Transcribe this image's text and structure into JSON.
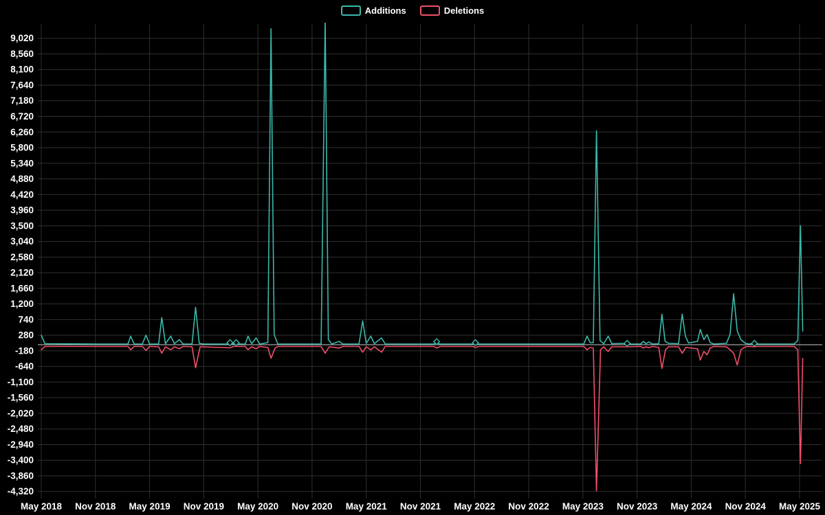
{
  "colors": {
    "background": "#000000",
    "grid": "#303030",
    "zero_line": "#cccccc",
    "text": "#ffffff"
  },
  "legend": {
    "items": [
      {
        "label": "Additions",
        "color": "#3cb8ab"
      },
      {
        "label": "Deletions",
        "color": "#f0506a"
      }
    ]
  },
  "chart_data": {
    "type": "line",
    "title": "",
    "legend_position": "top-center",
    "grid": true,
    "x_axis": {
      "labels": [
        "May 2018",
        "Nov 2018",
        "May 2019",
        "Nov 2019",
        "May 2020",
        "Nov 2020",
        "May 2021",
        "Nov 2021",
        "May 2022",
        "Nov 2022",
        "May 2023",
        "Nov 2023",
        "May 2024",
        "Nov 2024",
        "May 2025"
      ],
      "months_per_label": 6
    },
    "y_axis": {
      "min": -4320,
      "max": 9020,
      "tick_step": 460,
      "tick_values": [
        9020,
        8560,
        8100,
        7640,
        7180,
        6720,
        6260,
        5800,
        5340,
        4880,
        4420,
        3960,
        3500,
        3040,
        2580,
        2120,
        1660,
        1200,
        740,
        280,
        -180,
        -640,
        -1100,
        -1560,
        -2020,
        -2480,
        -2940,
        -3400,
        -3860,
        -4320
      ],
      "tick_labels": [
        "9,020",
        "8,560",
        "8,100",
        "7,640",
        "7,180",
        "6,720",
        "6,260",
        "5,800",
        "5,340",
        "4,880",
        "4,420",
        "3,960",
        "3,500",
        "3,040",
        "2,580",
        "2,120",
        "1,660",
        "1,200",
        "740",
        "280",
        "-180",
        "-640",
        "-1,100",
        "-1,560",
        "-2,020",
        "-2,480",
        "-2,940",
        "-3,400",
        "-3,860",
        "-4,320"
      ]
    },
    "series": [
      {
        "name": "Additions",
        "color": "#3cb8ab",
        "points": [
          [
            0,
            280
          ],
          [
            0.4,
            30
          ],
          [
            6,
            20
          ],
          [
            9.6,
            20
          ],
          [
            9.9,
            250
          ],
          [
            10.3,
            20
          ],
          [
            11.2,
            20
          ],
          [
            11.6,
            280
          ],
          [
            12.0,
            20
          ],
          [
            13.0,
            20
          ],
          [
            13.35,
            800
          ],
          [
            13.75,
            30
          ],
          [
            14.35,
            250
          ],
          [
            14.75,
            30
          ],
          [
            15.3,
            150
          ],
          [
            15.7,
            20
          ],
          [
            16.7,
            20
          ],
          [
            17.1,
            1100
          ],
          [
            17.5,
            40
          ],
          [
            18,
            20
          ],
          [
            20.6,
            20
          ],
          [
            20.9,
            60
          ],
          [
            21.3,
            20
          ],
          [
            21.6,
            60
          ],
          [
            21.9,
            20
          ],
          [
            22.6,
            20
          ],
          [
            22.9,
            250
          ],
          [
            23.3,
            30
          ],
          [
            23.8,
            200
          ],
          [
            24.2,
            20
          ],
          [
            25.1,
            60
          ],
          [
            25.45,
            9300
          ],
          [
            25.8,
            300
          ],
          [
            26.2,
            20
          ],
          [
            31.0,
            20
          ],
          [
            31.45,
            9600
          ],
          [
            31.8,
            150
          ],
          [
            32.2,
            20
          ],
          [
            33.0,
            100
          ],
          [
            33.4,
            20
          ],
          [
            35.2,
            20
          ],
          [
            35.6,
            700
          ],
          [
            36.0,
            40
          ],
          [
            36.5,
            250
          ],
          [
            36.9,
            30
          ],
          [
            37.7,
            200
          ],
          [
            38.1,
            20
          ],
          [
            43.5,
            20
          ],
          [
            43.8,
            90
          ],
          [
            44.1,
            20
          ],
          [
            47.8,
            20
          ],
          [
            48.1,
            60
          ],
          [
            48.4,
            20
          ],
          [
            60.1,
            20
          ],
          [
            60.45,
            250
          ],
          [
            60.8,
            60
          ],
          [
            61.15,
            60
          ],
          [
            61.5,
            6300
          ],
          [
            61.9,
            120
          ],
          [
            62.3,
            30
          ],
          [
            62.8,
            250
          ],
          [
            63.2,
            30
          ],
          [
            64.9,
            40
          ],
          [
            65.3,
            20
          ],
          [
            66.4,
            20
          ],
          [
            66.7,
            100
          ],
          [
            67.0,
            30
          ],
          [
            67.3,
            80
          ],
          [
            67.7,
            20
          ],
          [
            68.4,
            30
          ],
          [
            68.75,
            900
          ],
          [
            69.1,
            100
          ],
          [
            69.5,
            40
          ],
          [
            70.6,
            30
          ],
          [
            71.0,
            900
          ],
          [
            71.35,
            250
          ],
          [
            71.7,
            50
          ],
          [
            72.7,
            100
          ],
          [
            73.0,
            450
          ],
          [
            73.4,
            150
          ],
          [
            73.75,
            300
          ],
          [
            74.1,
            60
          ],
          [
            74.5,
            20
          ],
          [
            75.9,
            40
          ],
          [
            76.3,
            300
          ],
          [
            76.7,
            1500
          ],
          [
            77.1,
            400
          ],
          [
            77.5,
            150
          ],
          [
            78.0,
            40
          ],
          [
            78.4,
            20
          ],
          [
            79.0,
            40
          ],
          [
            79.4,
            20
          ],
          [
            83.4,
            20
          ],
          [
            83.8,
            120
          ],
          [
            84.1,
            3500
          ],
          [
            84.35,
            400
          ]
        ],
        "markers": [
          [
            20.9,
            60
          ],
          [
            21.6,
            60
          ],
          [
            43.8,
            90
          ],
          [
            48.1,
            60
          ],
          [
            64.9,
            40
          ],
          [
            79.0,
            40
          ]
        ]
      },
      {
        "name": "Deletions",
        "color": "#f0506a",
        "points": [
          [
            0,
            -150
          ],
          [
            0.4,
            -50
          ],
          [
            6,
            -50
          ],
          [
            9.6,
            -50
          ],
          [
            9.9,
            -150
          ],
          [
            10.3,
            -50
          ],
          [
            11.2,
            -50
          ],
          [
            11.6,
            -170
          ],
          [
            12.0,
            -50
          ],
          [
            13.0,
            -60
          ],
          [
            13.35,
            -250
          ],
          [
            13.75,
            -60
          ],
          [
            14.35,
            -150
          ],
          [
            14.75,
            -60
          ],
          [
            15.3,
            -120
          ],
          [
            15.7,
            -50
          ],
          [
            16.7,
            -60
          ],
          [
            17.1,
            -680
          ],
          [
            17.6,
            -60
          ],
          [
            20.9,
            -90
          ],
          [
            21.3,
            -50
          ],
          [
            22.6,
            -50
          ],
          [
            22.9,
            -150
          ],
          [
            23.3,
            -60
          ],
          [
            23.8,
            -120
          ],
          [
            24.2,
            -50
          ],
          [
            25.1,
            -80
          ],
          [
            25.45,
            -400
          ],
          [
            25.9,
            -100
          ],
          [
            26.2,
            -50
          ],
          [
            31.0,
            -50
          ],
          [
            31.45,
            -250
          ],
          [
            31.9,
            -60
          ],
          [
            33.0,
            -100
          ],
          [
            33.4,
            -50
          ],
          [
            35.2,
            -50
          ],
          [
            35.6,
            -220
          ],
          [
            36.0,
            -60
          ],
          [
            36.5,
            -150
          ],
          [
            36.9,
            -60
          ],
          [
            37.7,
            -220
          ],
          [
            38.1,
            -50
          ],
          [
            43.5,
            -50
          ],
          [
            43.8,
            -100
          ],
          [
            44.2,
            -50
          ],
          [
            47.8,
            -50
          ],
          [
            48.1,
            -80
          ],
          [
            48.5,
            -50
          ],
          [
            60.1,
            -50
          ],
          [
            60.45,
            -150
          ],
          [
            60.8,
            -80
          ],
          [
            61.15,
            -100
          ],
          [
            61.5,
            -4300
          ],
          [
            61.95,
            -150
          ],
          [
            62.3,
            -60
          ],
          [
            62.8,
            -200
          ],
          [
            63.2,
            -60
          ],
          [
            64.9,
            -60
          ],
          [
            66.4,
            -50
          ],
          [
            66.7,
            -100
          ],
          [
            67.0,
            -60
          ],
          [
            67.3,
            -90
          ],
          [
            67.7,
            -50
          ],
          [
            68.4,
            -80
          ],
          [
            68.75,
            -700
          ],
          [
            69.15,
            -150
          ],
          [
            69.5,
            -60
          ],
          [
            70.6,
            -60
          ],
          [
            71.0,
            -250
          ],
          [
            71.4,
            -80
          ],
          [
            72.7,
            -120
          ],
          [
            73.0,
            -450
          ],
          [
            73.4,
            -200
          ],
          [
            73.75,
            -300
          ],
          [
            74.1,
            -100
          ],
          [
            74.5,
            -50
          ],
          [
            75.9,
            -60
          ],
          [
            76.3,
            -150
          ],
          [
            76.7,
            -250
          ],
          [
            77.1,
            -600
          ],
          [
            77.5,
            -150
          ],
          [
            78.0,
            -60
          ],
          [
            78.4,
            -50
          ],
          [
            79.0,
            -60
          ],
          [
            79.4,
            -50
          ],
          [
            83.4,
            -50
          ],
          [
            83.8,
            -150
          ],
          [
            84.1,
            -3500
          ],
          [
            84.35,
            -400
          ]
        ],
        "markers": []
      }
    ]
  }
}
